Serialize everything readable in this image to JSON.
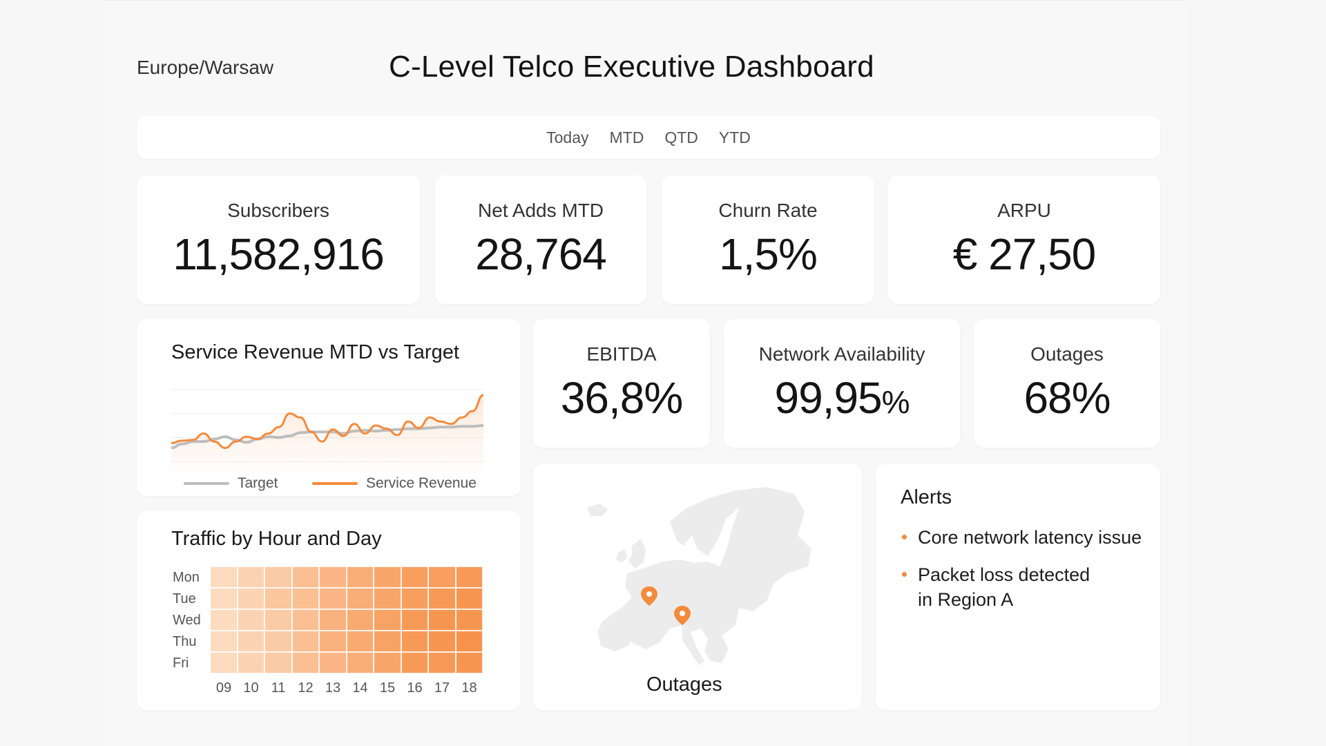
{
  "header": {
    "timezone": "Europe/Warsaw",
    "title": "C-Level Telco Executive Dashboard"
  },
  "periods": [
    "Today",
    "MTD",
    "QTD",
    "YTD"
  ],
  "kpis_top": [
    {
      "label": "Subscribers",
      "value": "11,582,916"
    },
    {
      "label": "Net Adds MTD",
      "value": "28,764"
    },
    {
      "label": "Churn Rate",
      "value": "1,5%"
    },
    {
      "label": "ARPU",
      "value": "€ 27,50"
    }
  ],
  "kpis_mid": {
    "ebitda": {
      "label": "EBITDA",
      "value": "36,8%"
    },
    "availability": {
      "label": "Network Availability",
      "value": "99,95",
      "unit": "%"
    },
    "outages": {
      "label": "Outages",
      "value": "68%"
    }
  },
  "colors": {
    "accent": "#f48a3c",
    "target": "#bdbdbd",
    "heat_low": "#fde3cc",
    "heat_high": "#f7924a"
  },
  "revenue_chart": {
    "title": "Service Revenue MTD vs Target",
    "legend_target": "Target",
    "legend_revenue": "Service Revenue",
    "chart_data": {
      "type": "line",
      "title": "Service Revenue MTD vs Target",
      "x": [
        1,
        2,
        3,
        4,
        5,
        6,
        7,
        8,
        9,
        10,
        11,
        12,
        13,
        14,
        15,
        16,
        17,
        18,
        19,
        20,
        21,
        22,
        23,
        24,
        25,
        26,
        27,
        28,
        29,
        30
      ],
      "ylim": [
        0,
        100
      ],
      "series": [
        {
          "name": "Target",
          "values": [
            22,
            27,
            30,
            30,
            33,
            36,
            32,
            29,
            33,
            36,
            35,
            37,
            41,
            42,
            42,
            42,
            40,
            43,
            44,
            43,
            44,
            45,
            46,
            46,
            47,
            48,
            48,
            49,
            49,
            50
          ]
        },
        {
          "name": "Service Revenue",
          "values": [
            28,
            31,
            32,
            40,
            30,
            22,
            30,
            36,
            33,
            40,
            48,
            65,
            60,
            42,
            30,
            45,
            37,
            52,
            40,
            50,
            46,
            38,
            55,
            47,
            60,
            55,
            52,
            60,
            68,
            88
          ]
        }
      ]
    }
  },
  "heatmap": {
    "title": "Traffic by Hour and Day",
    "rows": [
      "Mon",
      "Tue",
      "Wed",
      "Thu",
      "Fri"
    ],
    "cols": [
      "09",
      "10",
      "11",
      "12",
      "13",
      "14",
      "15",
      "16",
      "17",
      "18"
    ],
    "chart_data": {
      "type": "heatmap",
      "title": "Traffic by Hour and Day",
      "rows": [
        "Mon",
        "Tue",
        "Wed",
        "Thu",
        "Fri"
      ],
      "cols": [
        "09",
        "10",
        "11",
        "12",
        "13",
        "14",
        "15",
        "16",
        "17",
        "18"
      ],
      "values": [
        [
          0.1,
          0.2,
          0.3,
          0.45,
          0.55,
          0.65,
          0.75,
          0.85,
          0.85,
          0.9
        ],
        [
          0.1,
          0.2,
          0.35,
          0.45,
          0.55,
          0.65,
          0.75,
          0.85,
          0.9,
          0.95
        ],
        [
          0.1,
          0.2,
          0.3,
          0.45,
          0.6,
          0.7,
          0.8,
          0.9,
          0.95,
          0.95
        ],
        [
          0.1,
          0.2,
          0.3,
          0.45,
          0.6,
          0.7,
          0.8,
          0.9,
          0.95,
          1.0
        ],
        [
          0.1,
          0.2,
          0.3,
          0.45,
          0.55,
          0.65,
          0.75,
          0.9,
          0.9,
          0.95
        ]
      ]
    }
  },
  "map": {
    "caption": "Outages",
    "pins": [
      {
        "name": "outage-pin-1"
      },
      {
        "name": "outage-pin-2"
      }
    ]
  },
  "alerts": {
    "title": "Alerts",
    "items": [
      {
        "line1": "Core network latency issue",
        "line2": ""
      },
      {
        "line1": "Packet loss detected",
        "line2": "in Region A"
      }
    ]
  }
}
